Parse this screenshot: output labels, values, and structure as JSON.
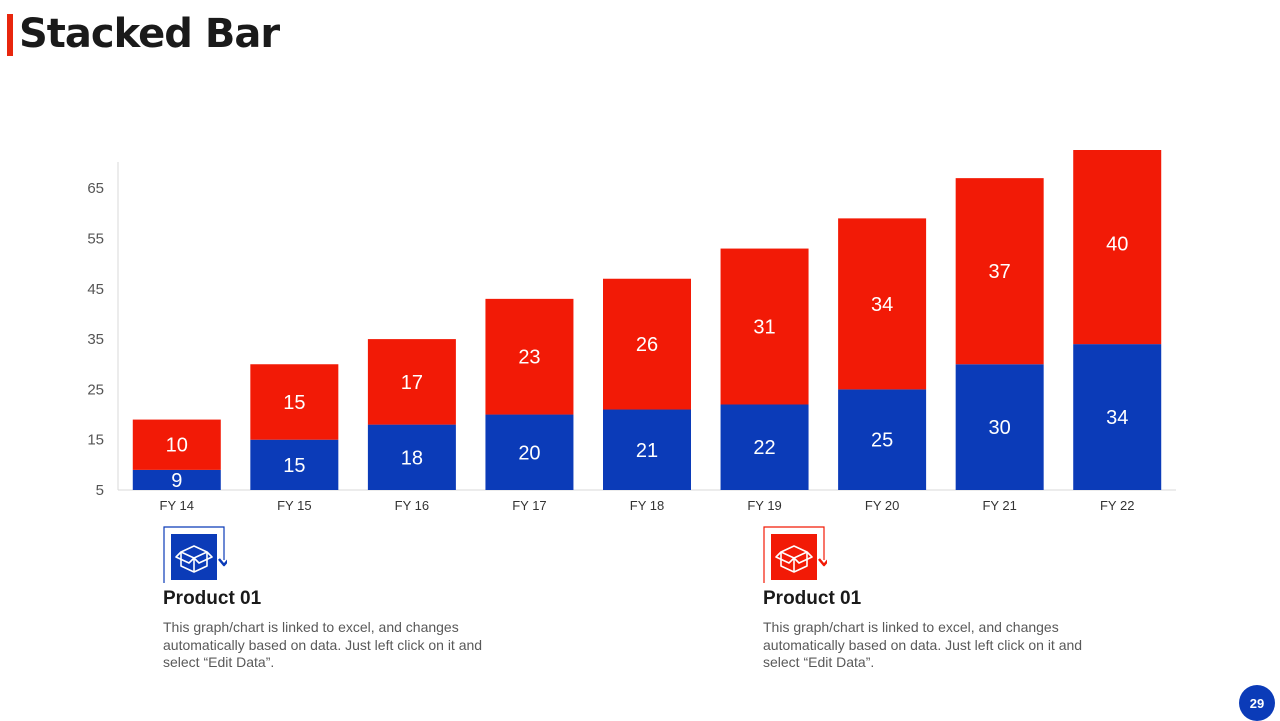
{
  "slide": {
    "title": "Stacked Bar",
    "page_number": "29"
  },
  "colors": {
    "red": "#f21a06",
    "blue": "#0b3bb8",
    "accent": "#e8260d",
    "badge": "#0b3bb8"
  },
  "chart_data": {
    "type": "bar",
    "stacked": true,
    "categories": [
      "FY 14",
      "FY 15",
      "FY 16",
      "FY 17",
      "FY 18",
      "FY 19",
      "FY 20",
      "FY 21",
      "FY 22"
    ],
    "series": [
      {
        "values": [
          9,
          15,
          18,
          20,
          21,
          22,
          25,
          30,
          34
        ],
        "color": "#0b3bb8"
      },
      {
        "values": [
          10,
          15,
          17,
          23,
          26,
          31,
          34,
          37,
          40
        ],
        "color": "#f21a06"
      }
    ],
    "yticks": [
      5,
      15,
      25,
      35,
      45,
      55,
      65
    ],
    "ylim": [
      5,
      70
    ],
    "grid": false,
    "legend": "none",
    "data_labels": true
  },
  "products": [
    {
      "title": "Product 01",
      "description": "This graph/chart is linked to excel, and changes automatically based on data. Just left click on it and select “Edit Data”.",
      "icon": "box-icon",
      "color": "#0b3bb8"
    },
    {
      "title": "Product 01",
      "description": "This graph/chart is linked to excel, and changes automatically based on data. Just left click on it and select “Edit Data”.",
      "icon": "box-icon",
      "color": "#f21a06"
    }
  ]
}
